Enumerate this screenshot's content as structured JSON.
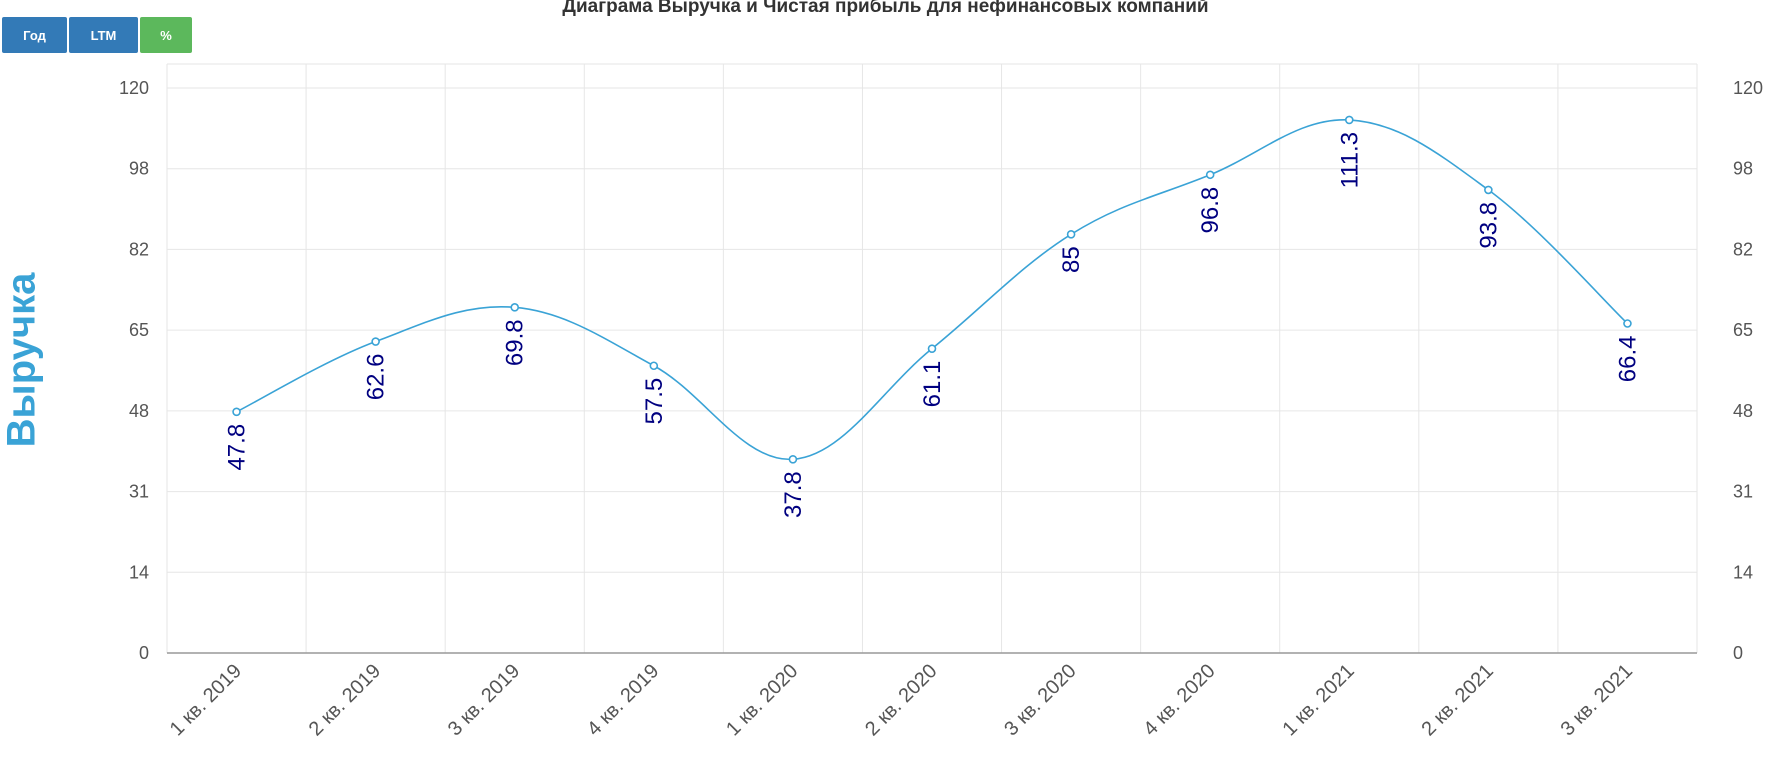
{
  "title": "Диаграма Выручка и Чистая прибыль для нефинансовых компаний",
  "buttons": [
    {
      "label": "Год",
      "color": "#337ab7"
    },
    {
      "label": "LTM",
      "color": "#337ab7"
    },
    {
      "label": "%",
      "color": "#5cb85c"
    }
  ],
  "chart_data": {
    "type": "line",
    "ylabel": "Выручка",
    "categories": [
      "1 кв. 2019",
      "2 кв. 2019",
      "3 кв. 2019",
      "4 кв. 2019",
      "1 кв. 2020",
      "2 кв. 2020",
      "3 кв. 2020",
      "4 кв. 2020",
      "1 кв. 2021",
      "2 кв. 2021",
      "3 кв. 2021"
    ],
    "series": [
      {
        "values": [
          47.8,
          62.6,
          69.8,
          57.5,
          37.8,
          61.1,
          85,
          96.8,
          111.3,
          93.8,
          66.4
        ],
        "color": "#3aa3d6"
      }
    ],
    "yticks": [
      "0",
      "14",
      "31",
      "48",
      "65",
      "82",
      "98",
      "120"
    ],
    "ylim": [
      0,
      120
    ],
    "grid": true,
    "right_axis_ticks": [
      "0",
      "14",
      "31",
      "48",
      "65",
      "82",
      "98",
      "120"
    ]
  }
}
